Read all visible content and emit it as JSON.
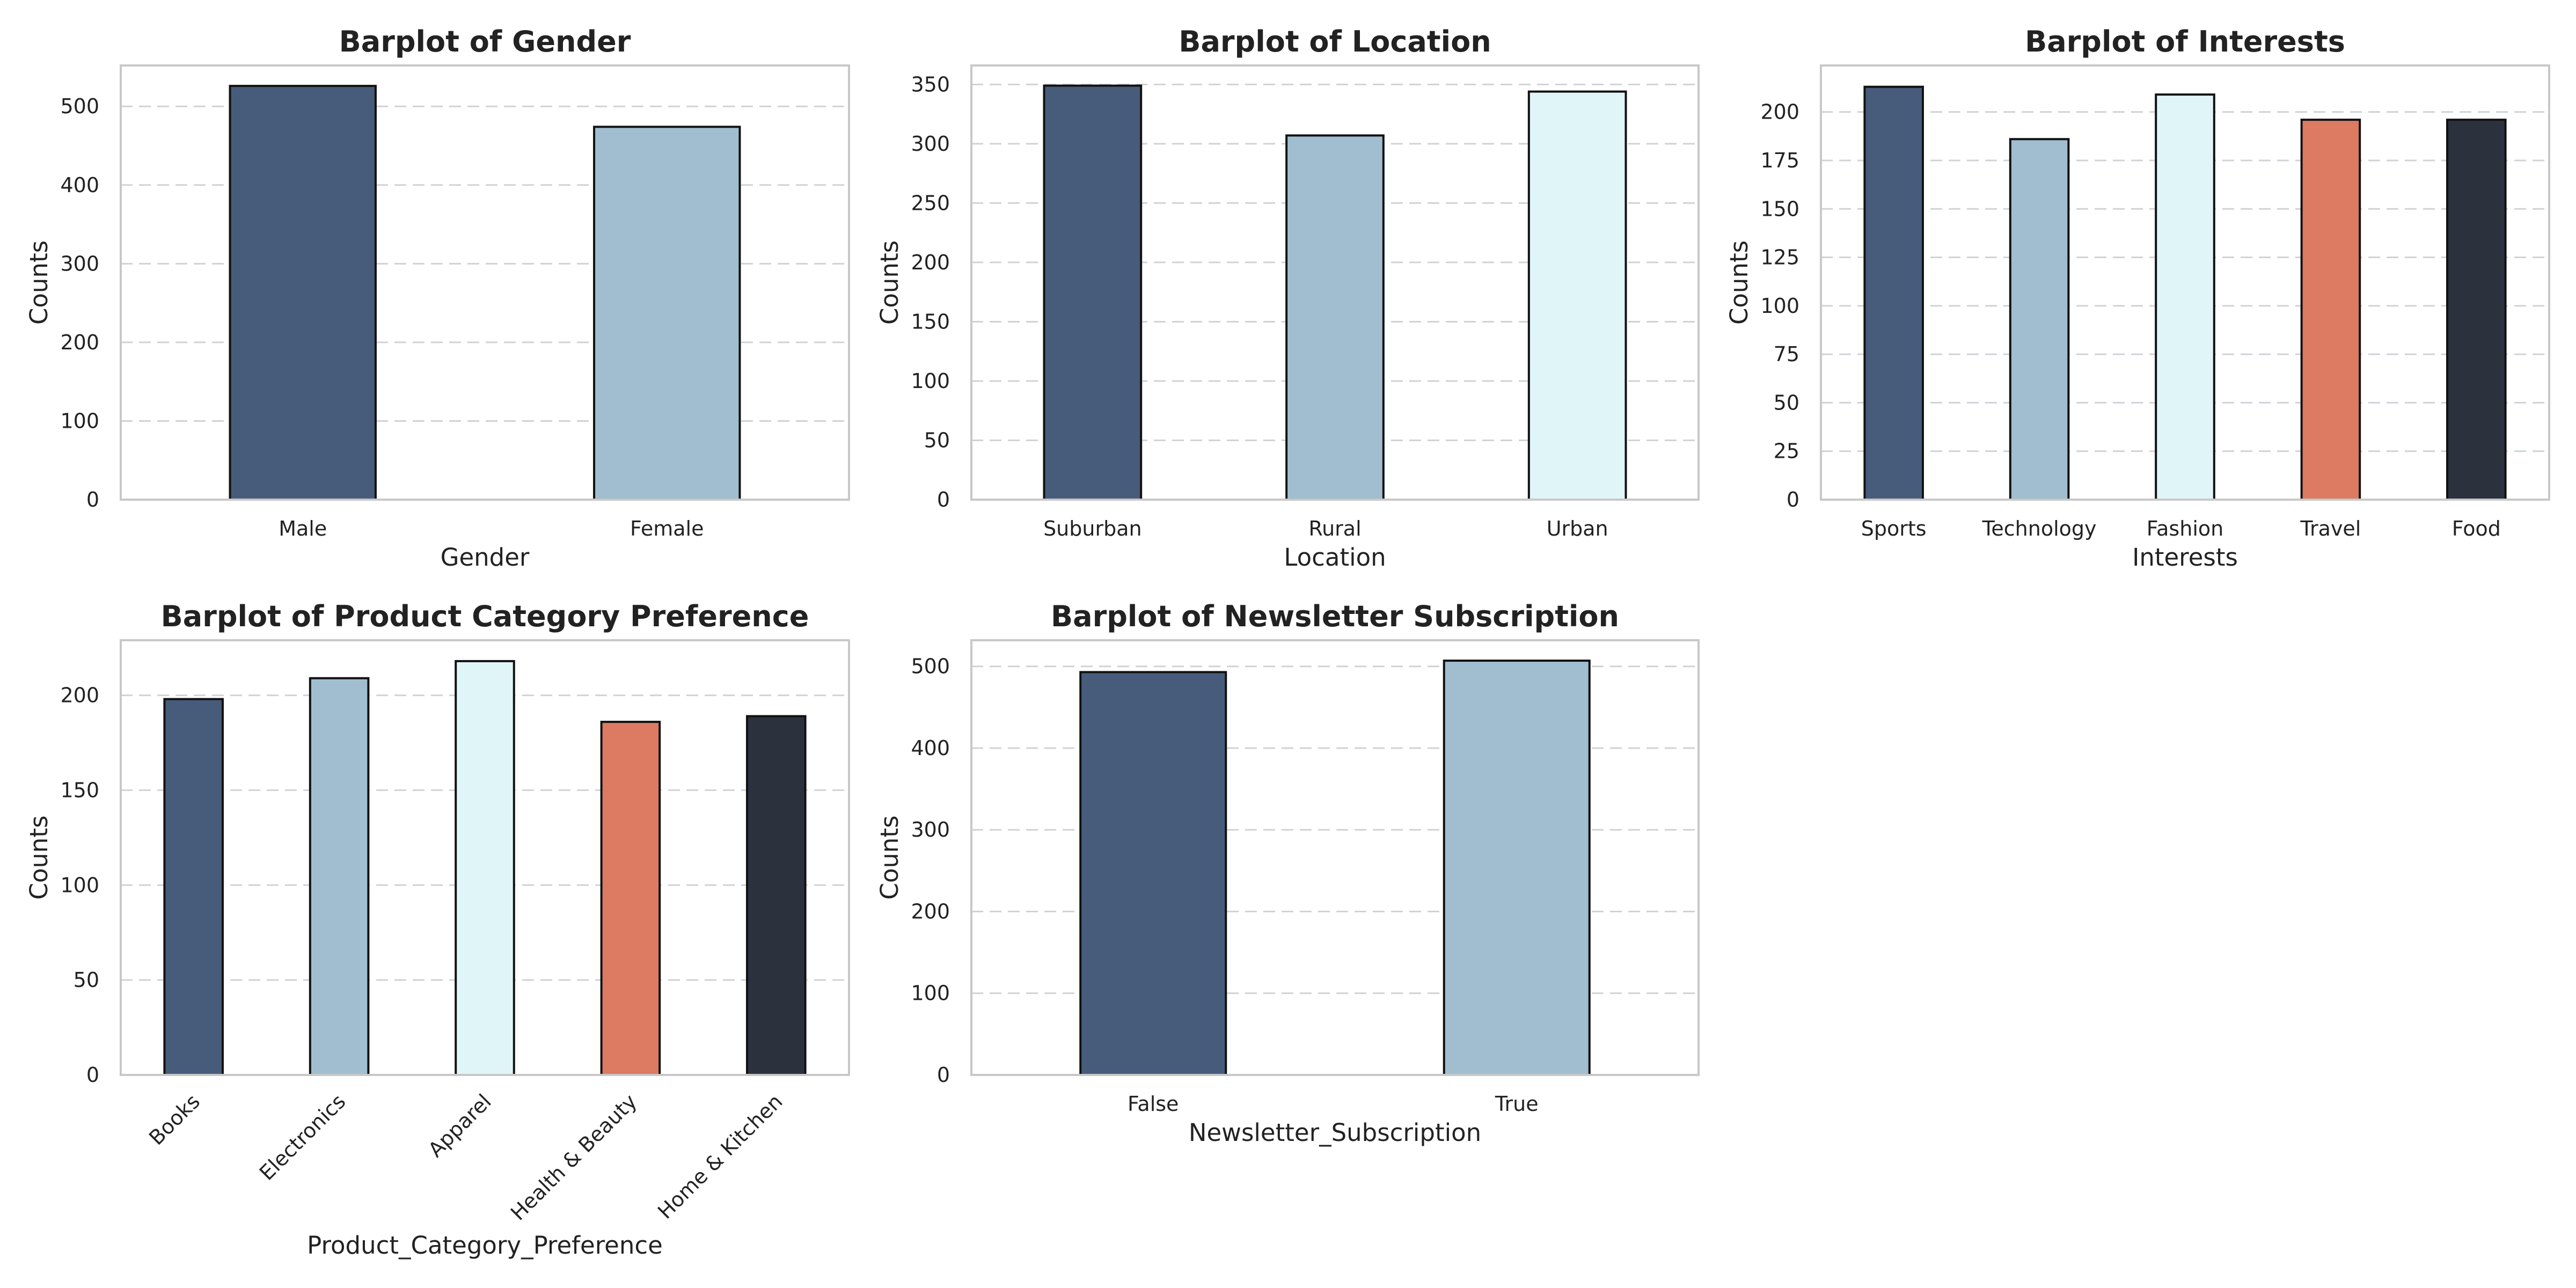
{
  "figure": {
    "background": "#ffffff"
  },
  "palette": [
    "#475c7a",
    "#a0bed0",
    "#e0f5f7",
    "#dc7a62",
    "#2b323e"
  ],
  "chart_data": [
    {
      "type": "bar",
      "title": "Barplot of Gender",
      "xlabel": "Gender",
      "ylabel": "Counts",
      "categories": [
        "Male",
        "Female"
      ],
      "values": [
        526,
        474
      ],
      "ylim": [
        0,
        552
      ],
      "yticks": [
        0,
        100,
        200,
        300,
        400,
        500
      ],
      "grid": "y",
      "rotate_xticks": false
    },
    {
      "type": "bar",
      "title": "Barplot of Location",
      "xlabel": "Location",
      "ylabel": "Counts",
      "categories": [
        "Suburban",
        "Rural",
        "Urban"
      ],
      "values": [
        349,
        307,
        344
      ],
      "ylim": [
        0,
        366
      ],
      "yticks": [
        0,
        50,
        100,
        150,
        200,
        250,
        300,
        350
      ],
      "grid": "y",
      "rotate_xticks": false
    },
    {
      "type": "bar",
      "title": "Barplot of Interests",
      "xlabel": "Interests",
      "ylabel": "Counts",
      "categories": [
        "Sports",
        "Technology",
        "Fashion",
        "Travel",
        "Food"
      ],
      "values": [
        213,
        186,
        209,
        196,
        196
      ],
      "ylim": [
        0,
        224
      ],
      "yticks": [
        0,
        25,
        50,
        75,
        100,
        125,
        150,
        175,
        200
      ],
      "grid": "y",
      "rotate_xticks": false
    },
    {
      "type": "bar",
      "title": "Barplot of Product Category Preference",
      "xlabel": "Product_Category_Preference",
      "ylabel": "Counts",
      "categories": [
        "Books",
        "Electronics",
        "Apparel",
        "Health & Beauty",
        "Home & Kitchen"
      ],
      "values": [
        198,
        209,
        218,
        186,
        189
      ],
      "ylim": [
        0,
        229
      ],
      "yticks": [
        0,
        50,
        100,
        150,
        200
      ],
      "grid": "y",
      "rotate_xticks": true
    },
    {
      "type": "bar",
      "title": "Barplot of Newsletter Subscription",
      "xlabel": "Newsletter_Subscription",
      "ylabel": "Counts",
      "categories": [
        "False",
        "True"
      ],
      "values": [
        493,
        507
      ],
      "ylim": [
        0,
        532
      ],
      "yticks": [
        0,
        100,
        200,
        300,
        400,
        500
      ],
      "grid": "y",
      "rotate_xticks": false
    }
  ]
}
